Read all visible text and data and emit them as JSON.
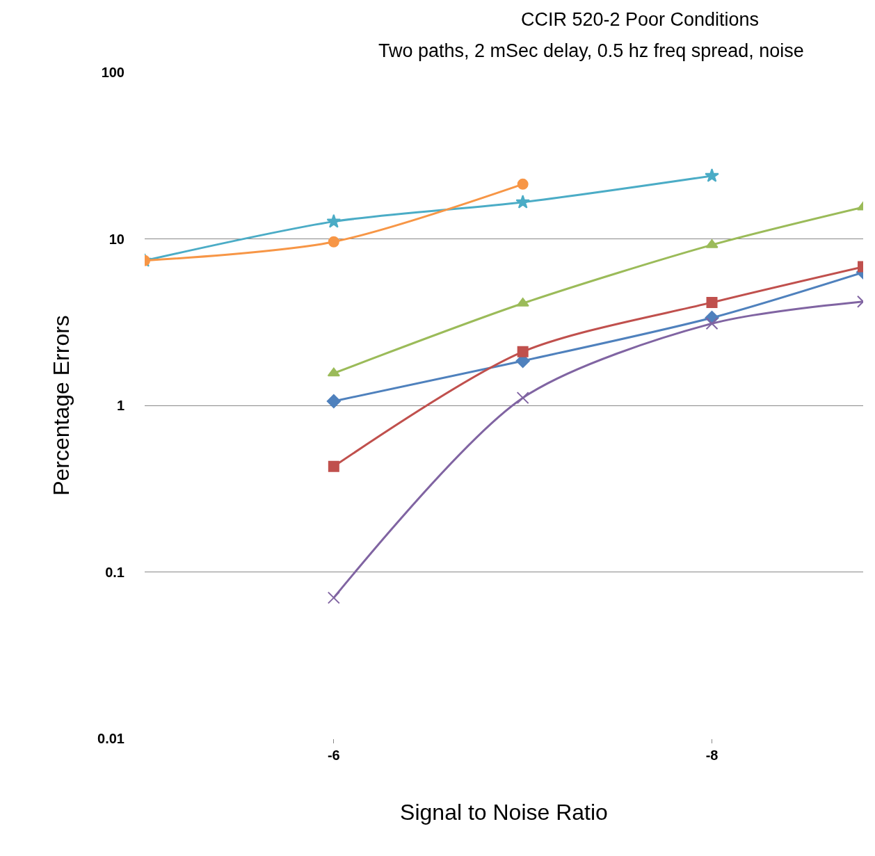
{
  "chart_data": {
    "type": "line",
    "title": "CCIR 520-2 Poor Conditions",
    "subtitle": "Two paths, 2 mSec delay, 0.5 hz freq spread, noise",
    "xlabel": "Signal to Noise Ratio",
    "ylabel": "Percentage Errors",
    "x": [
      -5,
      -6,
      -7,
      -8,
      -8.8
    ],
    "xlim": [
      -5,
      -8.8
    ],
    "xticks": [
      -6,
      -8
    ],
    "ylim": [
      0.01,
      100
    ],
    "yticks": [
      0.01,
      0.1,
      1,
      10,
      100
    ],
    "log": "y",
    "grid": "y",
    "series": [
      {
        "color": "#4f81bd",
        "marker": "diamond",
        "values": [
          null,
          1.06,
          1.85,
          3.36,
          6.3
        ]
      },
      {
        "color": "#c0504d",
        "marker": "square",
        "values": [
          null,
          0.43,
          2.1,
          4.15,
          6.8
        ]
      },
      {
        "color": "#9bbb59",
        "marker": "triangle",
        "values": [
          null,
          1.56,
          4.1,
          9.2,
          15.5
        ]
      },
      {
        "color": "#8064a2",
        "marker": "cross",
        "values": [
          null,
          0.07,
          1.11,
          3.1,
          4.2
        ]
      },
      {
        "color": "#4bacc6",
        "marker": "star",
        "values": [
          7.4,
          12.7,
          16.6,
          23.9,
          null
        ]
      },
      {
        "color": "#f79646",
        "marker": "circle",
        "values": [
          7.4,
          9.6,
          21.3,
          null,
          null
        ]
      }
    ]
  }
}
